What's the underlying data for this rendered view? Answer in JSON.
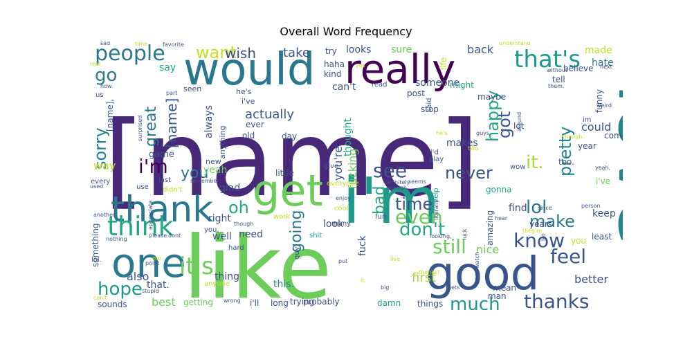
{
  "title": "Overall Word Frequency",
  "words": [
    {
      "text": "[name]",
      "color": "#482878"
    },
    {
      "text": "like",
      "color": "#6ccd5a"
    },
    {
      "text": "love",
      "color": "#25838e"
    },
    {
      "text": "i'm",
      "color": "#1f998a"
    },
    {
      "text": "would",
      "color": "#2a788e"
    },
    {
      "text": "really",
      "color": "#440154"
    },
    {
      "text": "get",
      "color": "#6ccd5a"
    },
    {
      "text": "good",
      "color": "#39568c"
    },
    {
      "text": "one",
      "color": "#2a788e"
    },
    {
      "text": "thank",
      "color": "#2a788e"
    },
    {
      "text": "think",
      "color": "#22a884"
    },
    {
      "text": "people",
      "color": "#2a788e"
    },
    {
      "text": "that's",
      "color": "#1f998a"
    },
    {
      "text": "know",
      "color": "#39568c"
    },
    {
      "text": "it's",
      "color": "#6ccd5a"
    },
    {
      "text": "thanks",
      "color": "#3b528b"
    },
    {
      "text": "feel",
      "color": "#39568c"
    },
    {
      "text": "much",
      "color": "#1f998a"
    },
    {
      "text": "lol",
      "color": "#2a788e"
    },
    {
      "text": "see",
      "color": "#3b528b"
    },
    {
      "text": "i'm",
      "color": "#440154"
    },
    {
      "text": "hope",
      "color": "#1f998a"
    },
    {
      "text": "still",
      "color": "#6ccd5a"
    },
    {
      "text": "it.",
      "color": "#a5db36"
    },
    {
      "text": "make",
      "color": "#2a788e"
    },
    {
      "text": "never",
      "color": "#3b528b"
    },
    {
      "text": "don't",
      "color": "#22a884"
    },
    {
      "text": "time",
      "color": "#39568c"
    },
    {
      "text": "even",
      "color": "#6ccd5a"
    },
    {
      "text": "pretty",
      "color": "#25838e"
    },
    {
      "text": "got",
      "color": "#39568c"
    },
    {
      "text": "happy",
      "color": "#22a884"
    },
    {
      "text": "oh",
      "color": "#22a884"
    },
    {
      "text": "sorry",
      "color": "#25838e"
    },
    {
      "text": "go",
      "color": "#2a788e"
    },
    {
      "text": "great",
      "color": "#2a788e"
    },
    {
      "text": "want",
      "color": "#c2df23"
    },
    {
      "text": "wish",
      "color": "#3b528b"
    },
    {
      "text": "take",
      "color": "#3b528b"
    },
    {
      "text": "you",
      "color": "#2a788e"
    },
    {
      "text": "going",
      "color": "#2a788e"
    },
    {
      "text": "bad",
      "color": "#22a884"
    },
    {
      "text": "actually",
      "color": "#39568c"
    },
    {
      "text": "you're",
      "color": "#3b528b"
    },
    {
      "text": "fucking",
      "color": "#6ccd5a"
    },
    {
      "text": "[name]",
      "color": "#39568c"
    },
    {
      "text": "could",
      "color": "#3b528b"
    },
    {
      "text": "better",
      "color": "#3b528b"
    },
    {
      "text": "best",
      "color": "#6ccd5a"
    },
    {
      "text": "also",
      "color": "#3b528b"
    },
    {
      "text": "first",
      "color": "#a5db36"
    },
    {
      "text": "nice",
      "color": "#6ccd5a"
    },
    {
      "text": "say",
      "color": "#22a884"
    },
    {
      "text": "made",
      "color": "#c2df23"
    },
    {
      "text": "hate",
      "color": "#2a788e"
    },
    {
      "text": "looks",
      "color": "#3b528b"
    },
    {
      "text": "sure",
      "color": "#6ccd5a"
    },
    {
      "text": "back",
      "color": "#3b528b"
    },
    {
      "text": "someone",
      "color": "#3b528b"
    },
    {
      "text": "can't",
      "color": "#39568c"
    },
    {
      "text": "thought",
      "color": "#22a884"
    },
    {
      "text": "makes",
      "color": "#3b528b"
    },
    {
      "text": "way",
      "color": "#c2df23"
    },
    {
      "text": "game",
      "color": "#39568c"
    },
    {
      "text": "always",
      "color": "#3b528b"
    },
    {
      "text": "glad",
      "color": "#3b528b"
    },
    {
      "text": "right",
      "color": "#3b528b"
    },
    {
      "text": "well",
      "color": "#3b528b"
    },
    {
      "text": "need",
      "color": "#3b528b"
    },
    {
      "text": "thing",
      "color": "#3b528b"
    },
    {
      "text": "this.",
      "color": "#25838e"
    },
    {
      "text": "that.",
      "color": "#39568c"
    },
    {
      "text": "look",
      "color": "#3b528b"
    },
    {
      "text": "find",
      "color": "#3b528b"
    },
    {
      "text": "keep",
      "color": "#3b528b"
    },
    {
      "text": "believe",
      "color": "#3b528b"
    },
    {
      "text": "fuck",
      "color": "#39568c"
    },
    {
      "text": "yeah",
      "color": "#6ccd5a"
    },
    {
      "text": "little",
      "color": "#3b528b"
    },
    {
      "text": "something",
      "color": "#39568c"
    },
    {
      "text": "sounds",
      "color": "#3b528b"
    },
    {
      "text": "probably",
      "color": "#3b528b"
    },
    {
      "text": "i'll",
      "color": "#3b528b"
    },
    {
      "text": "long",
      "color": "#3b528b"
    },
    {
      "text": "trying",
      "color": "#3b528b"
    },
    {
      "text": "getting",
      "color": "#6ccd5a"
    },
    {
      "text": "damn",
      "color": "#22a884"
    },
    {
      "text": "things",
      "color": "#3b528b"
    },
    {
      "text": "man",
      "color": "#3b528b"
    },
    {
      "text": "mean",
      "color": "#3b528b"
    },
    {
      "text": "gonna",
      "color": "#22a884"
    },
    {
      "text": "amazing",
      "color": "#3b528b"
    },
    {
      "text": "stop",
      "color": "#3b528b"
    },
    {
      "text": "maybe",
      "color": "#3b528b"
    },
    {
      "text": "might",
      "color": "#22a884"
    },
    {
      "text": "post",
      "color": "#3b528b"
    },
    {
      "text": "said",
      "color": "#3b528b"
    },
    {
      "text": "read",
      "color": "#3b528b"
    },
    {
      "text": "kind",
      "color": "#3b528b"
    },
    {
      "text": "haha",
      "color": "#3b528b"
    },
    {
      "text": "try",
      "color": "#3b528b"
    },
    {
      "text": "life",
      "color": "#c2df23"
    },
    {
      "text": "tell",
      "color": "#3b528b"
    },
    {
      "text": "funny",
      "color": "#3b528b"
    },
    {
      "text": "lot",
      "color": "#3b528b"
    },
    {
      "text": "come",
      "color": "#3b528b"
    },
    {
      "text": "year",
      "color": "#3b528b"
    },
    {
      "text": "too.",
      "color": "#3b528b"
    },
    {
      "text": "i've",
      "color": "#6ccd5a"
    },
    {
      "text": "least",
      "color": "#3b528b"
    },
    {
      "text": "you",
      "color": "#c2df23"
    },
    {
      "text": "years",
      "color": "#3b528b"
    },
    {
      "text": "old",
      "color": "#3b528b"
    },
    {
      "text": "day",
      "color": "#3b528b"
    },
    {
      "text": "ever",
      "color": "#3b528b"
    },
    {
      "text": "anything",
      "color": "#3b528b"
    },
    {
      "text": "new",
      "color": "#3b528b"
    },
    {
      "text": "he's",
      "color": "#3b528b"
    },
    {
      "text": "i've",
      "color": "#3b528b"
    },
    {
      "text": "seen",
      "color": "#3b528b"
    },
    {
      "text": "every",
      "color": "#3b528b"
    },
    {
      "text": "use",
      "color": "#3b528b"
    },
    {
      "text": "last",
      "color": "#3b528b"
    },
    {
      "text": "didn't",
      "color": "#c2df23"
    },
    {
      "text": "give",
      "color": "#3b528b"
    },
    {
      "text": "everyone",
      "color": "#c2df23"
    },
    {
      "text": "many",
      "color": "#3b528b"
    },
    {
      "text": "work",
      "color": "#c2df23"
    },
    {
      "text": "hard",
      "color": "#3b528b"
    },
    {
      "text": "guy",
      "color": "#3b528b"
    },
    {
      "text": "shit",
      "color": "#22a884"
    },
    {
      "text": "anyone",
      "color": "#c2df23"
    },
    {
      "text": "you,",
      "color": "#3b528b"
    },
    {
      "text": "play",
      "color": "#3b528b"
    },
    {
      "text": "i'd",
      "color": "#3b528b"
    },
    {
      "text": "fun",
      "color": "#3b528b"
    },
    {
      "text": "cool",
      "color": "#c2df23"
    },
    {
      "text": "enjoy",
      "color": "#39568c"
    },
    {
      "text": "watch",
      "color": "#3b528b"
    },
    {
      "text": "help",
      "color": "#22a884"
    },
    {
      "text": "definitely",
      "color": "#3b528b"
    },
    {
      "text": "enough",
      "color": "#3b528b"
    },
    {
      "text": "wow",
      "color": "#3b528b"
    },
    {
      "text": "two",
      "color": "#c2df23"
    },
    {
      "text": "guys",
      "color": "#3b528b"
    },
    {
      "text": "he's",
      "color": "#c2df23"
    },
    {
      "text": "weird",
      "color": "#3b528b"
    },
    {
      "text": "though.",
      "color": "#c2df23"
    },
    {
      "text": "yeah,",
      "color": "#3b528b"
    },
    {
      "text": "since",
      "color": "#3b528b"
    },
    {
      "text": "person",
      "color": "#3b528b"
    },
    {
      "text": "they're",
      "color": "#c2df23"
    },
    {
      "text": "hear",
      "color": "#3b528b"
    },
    {
      "text": "let",
      "color": "#3b528b"
    },
    {
      "text": "luck",
      "color": "#3b528b"
    },
    {
      "text": "looking,",
      "color": "#3b528b"
    },
    {
      "text": "put",
      "color": "#3b528b"
    },
    {
      "text": "live",
      "color": "#c2df23"
    },
    {
      "text": "big",
      "color": "#3b528b"
    },
    {
      "text": "thanks!",
      "color": "#c2df23"
    },
    {
      "text": "gets",
      "color": "#3b528b"
    },
    {
      "text": "it.",
      "color": "#c2df23"
    },
    {
      "text": "stupid",
      "color": "#3b528b"
    },
    {
      "text": "can't",
      "color": "#c2df23"
    },
    {
      "text": "point",
      "color": "#3b528b"
    },
    {
      "text": "me.",
      "color": "#c2df23"
    },
    {
      "text": "lol.",
      "color": "#3b528b"
    },
    {
      "text": "nothing",
      "color": "#3b528b"
    },
    {
      "text": "please",
      "color": "#3b528b"
    },
    {
      "text": "dont",
      "color": "#3b528b"
    },
    {
      "text": "wrong",
      "color": "#3b528b"
    },
    {
      "text": "though",
      "color": "#3b528b"
    },
    {
      "text": "used",
      "color": "#3b528b"
    },
    {
      "text": "another",
      "color": "#3b528b"
    },
    {
      "text": "remember",
      "color": "#3b528b"
    },
    {
      "text": "appreciate",
      "color": "#3b528b"
    },
    {
      "text": "surprised",
      "color": "#3b528b"
    },
    {
      "text": "part",
      "color": "#3b528b"
    },
    {
      "text": "sad",
      "color": "#3b528b"
    },
    {
      "text": "time.",
      "color": "#c2df23"
    },
    {
      "text": "favorite",
      "color": "#3b528b"
    },
    {
      "text": "real",
      "color": "#c2df23"
    },
    {
      "text": "now.",
      "color": "#3b528b"
    },
    {
      "text": "us",
      "color": "#3b528b"
    },
    {
      "text": "[name],",
      "color": "#3b528b"
    },
    {
      "text": "yes",
      "color": "#c2df23"
    },
    {
      "text": "understand",
      "color": "#c2df23"
    },
    {
      "text": "without",
      "color": "#3b528b"
    },
    {
      "text": "next",
      "color": "#3b528b"
    },
    {
      "text": "them.",
      "color": "#3b528b"
    },
    {
      "text": "around",
      "color": "#3b528b"
    },
    {
      "text": "seems",
      "color": "#3b528b"
    },
    {
      "text": "literally",
      "color": "#3b528b"
    },
    {
      "text": "im",
      "color": "#3b528b"
    }
  ]
}
